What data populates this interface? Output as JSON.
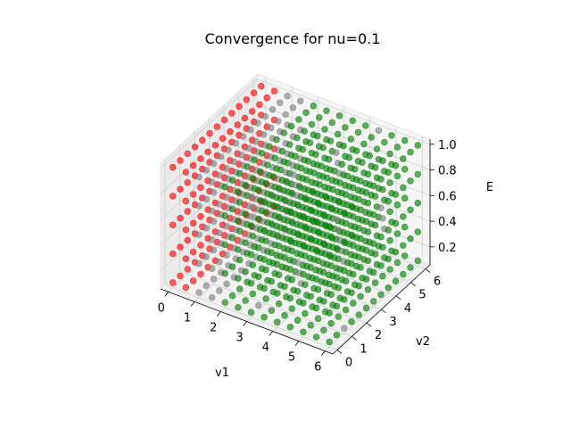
{
  "chart_data": {
    "type": "scatter3d",
    "title": "Convergence for nu=0.1",
    "xlabel": "v1",
    "ylabel": "v2",
    "zlabel": "E",
    "xlim": [
      0,
      6
    ],
    "ylim": [
      0,
      6
    ],
    "zlim": [
      0.1,
      1.0
    ],
    "x_ticks": [
      "0",
      "1",
      "2",
      "3",
      "4",
      "5",
      "6"
    ],
    "y_ticks": [
      "0",
      "1",
      "2",
      "3",
      "4",
      "5",
      "6"
    ],
    "z_ticks": [
      "0.2",
      "0.4",
      "0.6",
      "0.8",
      "1.0"
    ],
    "v1_values": [
      0,
      0.5,
      1,
      1.5,
      2,
      2.5,
      3,
      3.5,
      4,
      4.5,
      5,
      5.5,
      6
    ],
    "v2_values": [
      0,
      0.5,
      1,
      1.5,
      2,
      2.5,
      3,
      3.5,
      4,
      4.5,
      5,
      5.5,
      6
    ],
    "E_values": [
      0.1,
      0.325,
      0.55,
      0.775,
      1.0
    ],
    "status_colors": {
      "converged": "#008000",
      "diverged": "#ff0000",
      "other": "#808080"
    },
    "rule": "points with v1 < 1.5 are red (diverged) except on the v1 = 1 plane; the v1 = 1 plane, the v1 = 1.5 plane and scattered points elsewhere are gray; all others are green (converged)",
    "grid": true
  }
}
